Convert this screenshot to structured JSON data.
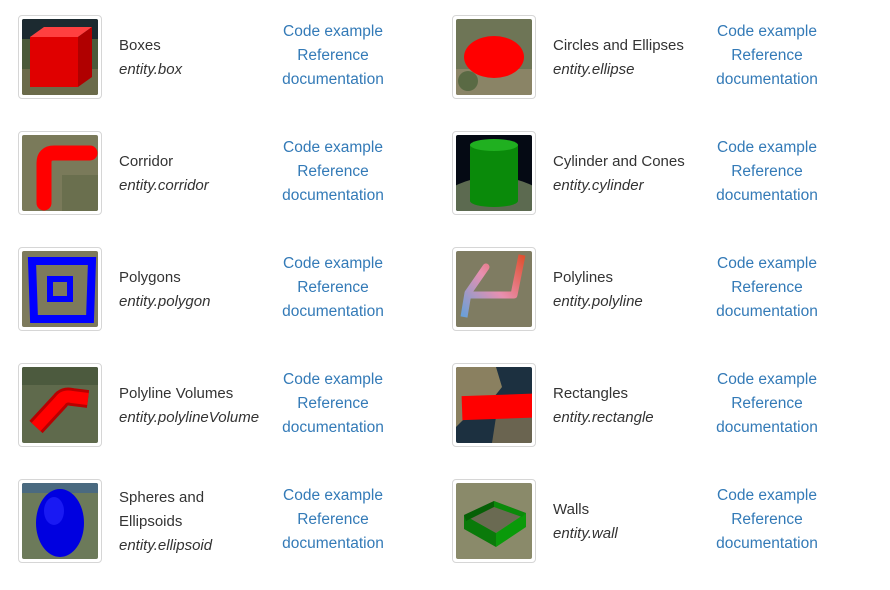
{
  "colors": {
    "link": "#337ab7",
    "text": "#333333",
    "border": "#d6d6d6"
  },
  "items": [
    {
      "title": "Boxes",
      "api": "entity.box",
      "icon": "red-box-icon"
    },
    {
      "title": "Circles and Ellipses",
      "api": "entity.ellipse",
      "icon": "red-ellipse-icon"
    },
    {
      "title": "Corridor",
      "api": "entity.corridor",
      "icon": "red-corridor-icon"
    },
    {
      "title": "Cylinder and Cones",
      "api": "entity.cylinder",
      "icon": "green-cylinder-icon"
    },
    {
      "title": "Polygons",
      "api": "entity.polygon",
      "icon": "blue-polygon-icon"
    },
    {
      "title": "Polylines",
      "api": "entity.polyline",
      "icon": "gradient-polyline-icon"
    },
    {
      "title": "Polyline Volumes",
      "api": "entity.polylineVolume",
      "icon": "red-polyline-volume-icon"
    },
    {
      "title": "Rectangles",
      "api": "entity.rectangle",
      "icon": "red-rectangle-icon"
    },
    {
      "title": "Spheres and Ellipsoids",
      "api": "entity.ellipsoid",
      "icon": "blue-ellipsoid-icon"
    },
    {
      "title": "Walls",
      "api": "entity.wall",
      "icon": "green-wall-icon"
    }
  ],
  "links": {
    "code_example": "Code example",
    "reference": "Reference",
    "documentation": "documentation"
  }
}
